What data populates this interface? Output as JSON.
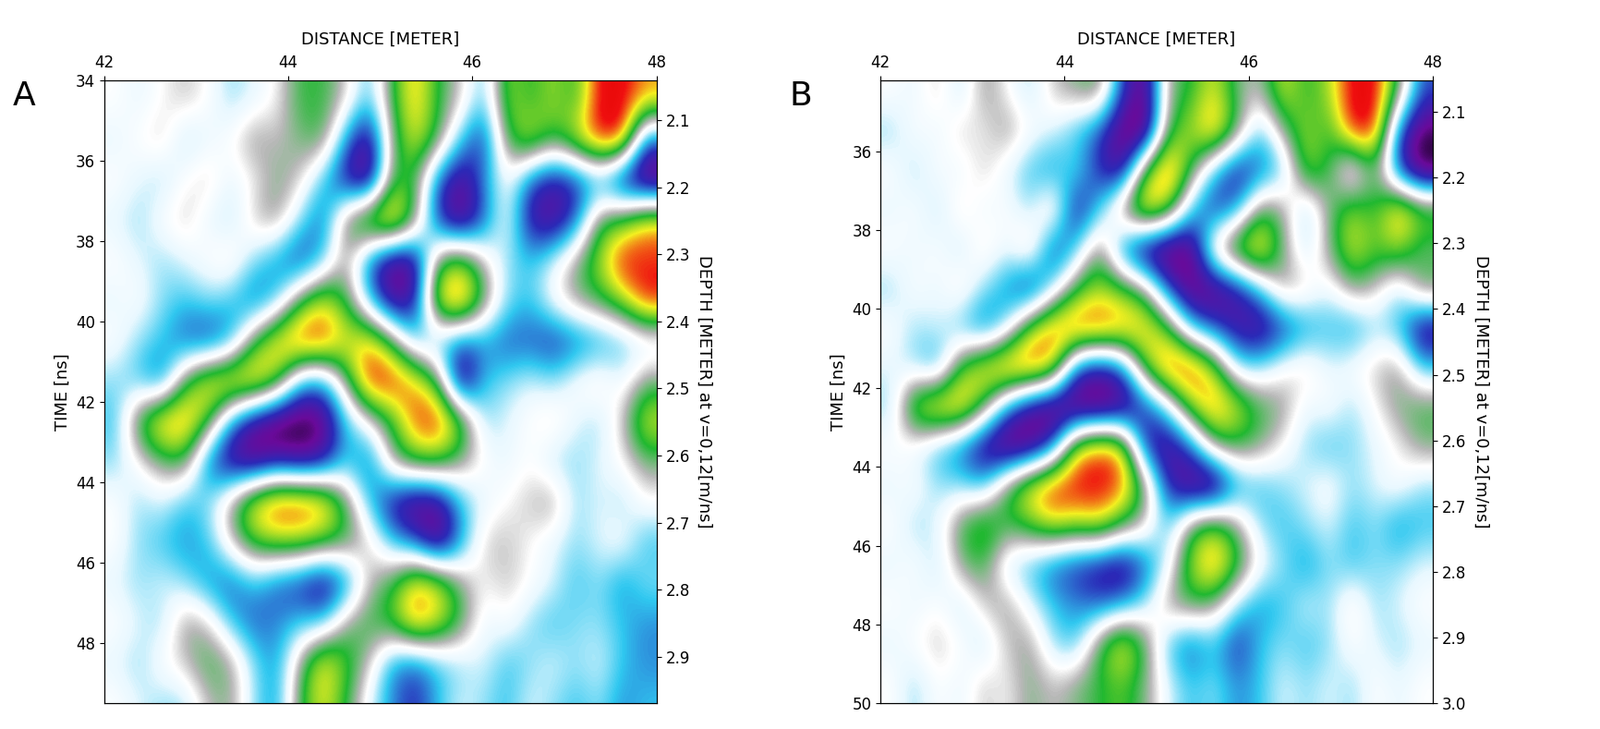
{
  "chart_data": [
    {
      "type": "heatmap",
      "title": "A",
      "xlabel": "DISTANCE [METER]",
      "ylabel": "TIME [ns]",
      "y2label": "DEPTH [METER] at v=0,12[m/ns]",
      "xlim": [
        42,
        48
      ],
      "xticks": [
        42,
        44,
        46,
        48
      ],
      "ylim": [
        49.5,
        34
      ],
      "yticks": [
        34,
        36,
        38,
        40,
        42,
        44,
        46,
        48
      ],
      "y2lim": [
        2.97,
        2.04
      ],
      "y2ticks": [
        2.1,
        2.2,
        2.3,
        2.4,
        2.5,
        2.6,
        2.7,
        2.8,
        2.9
      ],
      "color_range": [
        -1,
        1
      ],
      "x": [
        42.125,
        42.375,
        42.625,
        42.875,
        43.125,
        43.375,
        43.625,
        43.875,
        44.125,
        44.375,
        44.625,
        44.875,
        45.125,
        45.375,
        45.625,
        45.875,
        46.125,
        46.375,
        46.625,
        46.875,
        47.125,
        47.375,
        47.625,
        47.875
      ],
      "y": [
        34.5,
        35.5,
        36.5,
        37.5,
        38.5,
        39.5,
        40.5,
        41.5,
        42.5,
        43.5,
        44.5,
        45.5,
        46.5,
        47.5,
        48.5,
        49.5
      ],
      "cells": [
        [
          0,
          -0.1,
          0,
          0.1,
          0,
          -0.2,
          -0.1,
          0,
          0.3,
          0.3,
          0.1,
          -0.3,
          0.3,
          0.7,
          0.3,
          0.1,
          -0.3,
          0.5,
          0.3,
          0.5,
          0.3,
          0.9,
          0.9,
          0.7
        ],
        [
          -0.1,
          0,
          0.1,
          -0.2,
          -0.1,
          0,
          0.2,
          0.1,
          0.2,
          0.3,
          -0.4,
          -0.8,
          0.2,
          0.6,
          0.3,
          -0.3,
          -0.6,
          0.3,
          0.6,
          0.3,
          0.6,
          0.9,
          0.9,
          -0.5
        ],
        [
          0,
          -0.1,
          -0.2,
          0,
          0.1,
          -0.1,
          0,
          0.2,
          0.1,
          -0.3,
          -0.7,
          -0.9,
          0.3,
          0.3,
          -0.5,
          -0.8,
          -0.4,
          0,
          -0.5,
          -0.7,
          -0.6,
          -0.4,
          -0.8,
          -1.0
        ],
        [
          -0.1,
          -0.2,
          0,
          0.1,
          -0.1,
          -0.2,
          0.1,
          0.2,
          -0.2,
          -0.5,
          0.3,
          0.7,
          0.9,
          0.3,
          -0.6,
          -0.9,
          -0.5,
          0,
          -0.7,
          -0.8,
          -0.5,
          0.3,
          0.4,
          0.7
        ],
        [
          0,
          -0.1,
          -0.2,
          -0.1,
          0,
          0.1,
          -0.2,
          -0.4,
          -0.6,
          -0.3,
          0.2,
          -0.5,
          -0.9,
          -0.8,
          0.3,
          0.5,
          0.1,
          -0.2,
          -0.3,
          -0.1,
          0.2,
          0.5,
          0.9,
          0.8
        ],
        [
          -0.1,
          0,
          -0.2,
          -0.3,
          -0.2,
          -0.3,
          -0.5,
          -0.3,
          0.3,
          0.6,
          0.3,
          -0.3,
          -0.8,
          -0.7,
          0.7,
          0.9,
          0.3,
          -0.2,
          -0.3,
          0,
          0.2,
          0.3,
          0.5,
          0.9
        ],
        [
          0,
          -0.2,
          -0.3,
          -0.5,
          -0.6,
          -0.4,
          0.3,
          0.7,
          0.9,
          0.9,
          0.6,
          0.7,
          0.3,
          -0.3,
          -0.3,
          -0.5,
          -0.4,
          -0.5,
          -0.5,
          -0.6,
          -0.5,
          -0.4,
          -0.3,
          -0.2
        ],
        [
          -0.2,
          -0.3,
          -0.5,
          0.3,
          0.7,
          0.8,
          0.8,
          0.5,
          -0.3,
          -0.4,
          0.2,
          0.9,
          0.9,
          0.7,
          0.3,
          -0.9,
          -0.3,
          -0.2,
          -0.1,
          -0.2,
          0,
          0.1,
          -0.1,
          0.2
        ],
        [
          -0.3,
          0.4,
          0.8,
          0.8,
          0.4,
          -0.4,
          -0.8,
          -1.0,
          -1.0,
          -0.9,
          -0.3,
          0,
          0.3,
          0.8,
          0.9,
          0.5,
          -0.2,
          -0.1,
          0,
          0.1,
          -0.1,
          -0.2,
          0.1,
          0.6
        ],
        [
          -0.2,
          0,
          0.2,
          0.3,
          -0.5,
          -0.8,
          -0.9,
          -0.7,
          -0.8,
          -0.7,
          -0.3,
          -0.5,
          0.2,
          0.4,
          0.4,
          0.2,
          0,
          -0.1,
          0,
          -0.2,
          -0.2,
          -0.1,
          0,
          0.2
        ],
        [
          0,
          -0.2,
          -0.1,
          -0.3,
          -0.2,
          0.2,
          0.7,
          0.9,
          0.9,
          0.8,
          0.3,
          -0.3,
          -0.7,
          -0.9,
          -0.8,
          -0.3,
          -0.1,
          0,
          0.1,
          0.2,
          -0.2,
          -0.1,
          -0.2,
          0
        ],
        [
          0,
          -0.2,
          -0.3,
          -0.4,
          -0.3,
          0.1,
          0.4,
          0.5,
          0.5,
          0.4,
          0.3,
          0.1,
          -0.3,
          -0.5,
          -0.9,
          -0.4,
          0.1,
          0.1,
          0,
          -0.1,
          -0.2,
          -0.1,
          0,
          -0.3
        ],
        [
          -0.1,
          -0.2,
          -0.1,
          -0.2,
          -0.4,
          -0.5,
          -0.3,
          -0.5,
          -0.6,
          -0.8,
          -0.5,
          0.1,
          0.3,
          0.7,
          0.6,
          0.2,
          0,
          0.1,
          0,
          -0.1,
          -0.3,
          -0.2,
          -0.4,
          -0.2
        ],
        [
          0,
          -0.1,
          -0.2,
          0.2,
          0.1,
          -0.3,
          -0.5,
          -0.4,
          -0.3,
          -0.3,
          0.2,
          0.3,
          0.4,
          0.8,
          0.6,
          0.3,
          -0.1,
          0,
          -0.2,
          -0.3,
          -0.2,
          -0.2,
          -0.3,
          -0.4
        ],
        [
          -0.1,
          -0.2,
          0,
          0.1,
          0.3,
          0.2,
          -0.2,
          -0.4,
          0.2,
          0.7,
          0.4,
          0.1,
          -0.4,
          -0.5,
          -0.3,
          -0.2,
          -0.1,
          -0.3,
          -0.2,
          -0.1,
          -0.2,
          -0.1,
          -0.3,
          -0.4
        ],
        [
          0,
          -0.1,
          -0.2,
          -0.2,
          0.1,
          0.2,
          -0.2,
          -0.4,
          0.3,
          0.6,
          0.3,
          -0.1,
          -0.4,
          -0.6,
          -0.3,
          -0.1,
          -0.2,
          -0.3,
          -0.1,
          -0.2,
          -0.3,
          -0.2,
          -0.4,
          -0.3
        ]
      ]
    },
    {
      "type": "heatmap",
      "title": "B",
      "xlabel": "DISTANCE [METER]",
      "ylabel": "TIME [ns]",
      "y2label": "DEPTH [METER] at v=0,12[m/ns]",
      "xlim": [
        42,
        48
      ],
      "xticks": [
        42,
        44,
        46,
        48
      ],
      "ylim": [
        50,
        34.2
      ],
      "yticks": [
        36,
        38,
        40,
        42,
        44,
        46,
        48,
        50
      ],
      "y2lim": [
        3.0,
        2.052
      ],
      "y2ticks": [
        2.1,
        2.2,
        2.3,
        2.4,
        2.5,
        2.6,
        2.7,
        2.8,
        2.9,
        3.0
      ],
      "color_range": [
        -1,
        1
      ],
      "x": [
        42.125,
        42.375,
        42.625,
        42.875,
        43.125,
        43.375,
        43.625,
        43.875,
        44.125,
        44.375,
        44.625,
        44.875,
        45.125,
        45.375,
        45.625,
        45.875,
        46.125,
        46.375,
        46.625,
        46.875,
        47.125,
        47.375,
        47.625,
        47.875
      ],
      "y": [
        34.5,
        35.5,
        36.5,
        37.5,
        38.5,
        39.5,
        40.5,
        41.5,
        42.5,
        43.5,
        44.5,
        45.5,
        46.5,
        47.5,
        48.5,
        49.5
      ],
      "cells": [
        [
          0,
          -0.1,
          0.1,
          -0.2,
          0.2,
          0,
          -0.2,
          0.1,
          0.2,
          0.3,
          -0.5,
          -0.9,
          0.2,
          0.3,
          0.6,
          0.2,
          0.1,
          0.6,
          0.3,
          0.5,
          0.9,
          0.9,
          0.3,
          -0.5
        ],
        [
          -0.2,
          0,
          -0.1,
          0.1,
          0,
          0.2,
          0,
          -0.1,
          -0.3,
          -0.5,
          -0.9,
          -1.0,
          0.3,
          0.5,
          0.8,
          0.3,
          -0.3,
          0.2,
          0.5,
          0.3,
          0.9,
          0.9,
          -0.5,
          -0.9
        ],
        [
          0,
          -0.2,
          0,
          -0.1,
          0.1,
          -0.1,
          -0.3,
          -0.4,
          -0.2,
          -0.6,
          -0.8,
          0.4,
          0.9,
          0.3,
          -0.3,
          -0.7,
          -0.5,
          -0.3,
          0.5,
          0.3,
          -0.3,
          0.3,
          -0.6,
          -1.0
        ],
        [
          -0.1,
          0,
          -0.2,
          0.1,
          -0.1,
          0,
          -0.2,
          0.2,
          -0.7,
          -0.3,
          0.3,
          0.8,
          0.5,
          -0.3,
          -0.6,
          -0.4,
          0.3,
          0.2,
          -0.3,
          0.2,
          0.5,
          0.3,
          0.8,
          0.5
        ],
        [
          0,
          -0.1,
          0,
          -0.2,
          0.1,
          -0.1,
          0.2,
          -0.6,
          -0.3,
          0.3,
          -0.5,
          -0.9,
          -1.0,
          -0.9,
          0.2,
          0.6,
          0.8,
          0.2,
          -0.2,
          0.2,
          0.6,
          0.4,
          0.5,
          0.2
        ],
        [
          -0.2,
          0,
          -0.1,
          0.1,
          -0.2,
          -0.4,
          -0.7,
          -0.2,
          0.3,
          0.5,
          0.4,
          0.2,
          -0.5,
          -0.9,
          -0.9,
          -0.7,
          -0.3,
          0.2,
          0.1,
          -0.1,
          0.2,
          0.1,
          -0.2,
          0.3
        ],
        [
          0,
          -0.2,
          -0.1,
          -0.3,
          -0.5,
          -0.2,
          0.5,
          0.8,
          0.9,
          0.9,
          0.8,
          0.7,
          0.4,
          -0.3,
          -0.5,
          -0.7,
          -0.8,
          -0.6,
          -0.4,
          -0.3,
          -0.4,
          -0.2,
          -0.3,
          -0.8
        ],
        [
          -0.1,
          -0.2,
          -0.4,
          0.4,
          0.7,
          0.9,
          0.9,
          0.7,
          -0.5,
          -0.7,
          -0.5,
          0.4,
          0.9,
          0.9,
          0.5,
          -0.2,
          -0.2,
          0,
          0.1,
          -0.1,
          0,
          0.1,
          0.2,
          -0.3
        ],
        [
          -0.2,
          0.6,
          0.8,
          0.8,
          0.3,
          -0.4,
          -0.8,
          -1.0,
          -1.0,
          -1.0,
          -0.9,
          -0.6,
          -0.2,
          0.5,
          0.8,
          0.6,
          0.3,
          0.2,
          -0.1,
          0,
          -0.2,
          0,
          0.2,
          0.3
        ],
        [
          0,
          -0.1,
          -0.3,
          -0.5,
          -0.8,
          -1.0,
          -0.9,
          -0.5,
          0.6,
          0.8,
          0.7,
          -0.6,
          -0.8,
          -0.5,
          0.2,
          0.3,
          0.2,
          0,
          -0.2,
          -0.3,
          -0.2,
          -0.1,
          0,
          0.2
        ],
        [
          -0.1,
          0,
          -0.2,
          -0.2,
          -0.3,
          0.3,
          0.7,
          0.9,
          0.9,
          0.9,
          0.8,
          0.3,
          -0.6,
          -0.9,
          -1.0,
          -0.4,
          -0.3,
          -0.2,
          -0.1,
          0,
          -0.2,
          -0.1,
          0,
          -0.2
        ],
        [
          0,
          -0.2,
          -0.1,
          0.3,
          0.5,
          0.3,
          0.4,
          0.6,
          0.5,
          0.6,
          0.3,
          0.1,
          -0.3,
          0.3,
          0.5,
          0.2,
          -0.2,
          -0.3,
          -0.2,
          -0.1,
          -0.3,
          -0.2,
          -0.4,
          -0.3
        ],
        [
          -0.1,
          0,
          -0.2,
          0.2,
          0.3,
          -0.2,
          -0.3,
          -0.5,
          -0.6,
          -0.7,
          -0.8,
          -0.5,
          -0.1,
          0.5,
          0.8,
          0.4,
          0,
          -0.2,
          -0.4,
          -0.2,
          -0.3,
          -0.2,
          -0.2,
          -0.1
        ],
        [
          0,
          -0.1,
          0,
          -0.2,
          0.1,
          0.2,
          -0.1,
          -0.3,
          -0.4,
          -0.5,
          -0.4,
          -0.2,
          0.2,
          0.3,
          0.2,
          -0.2,
          -0.4,
          -0.3,
          -0.1,
          -0.2,
          0.1,
          -0.2,
          -0.1,
          0
        ],
        [
          -0.1,
          0,
          0.1,
          0,
          -0.2,
          0.1,
          0.2,
          -0.2,
          -0.3,
          0.3,
          0.7,
          0.3,
          -0.3,
          -0.5,
          -0.3,
          -0.6,
          -0.3,
          -0.2,
          -0.3,
          -0.2,
          0,
          -0.1,
          -0.2,
          -0.1
        ],
        [
          0,
          -0.2,
          0,
          -0.1,
          0.1,
          0,
          0.2,
          0.1,
          0.2,
          0.3,
          0.4,
          0.2,
          -0.1,
          -0.3,
          -0.2,
          -0.4,
          -0.3,
          -0.1,
          -0.2,
          -0.1,
          -0.2,
          0,
          -0.1,
          0
        ]
      ]
    }
  ]
}
